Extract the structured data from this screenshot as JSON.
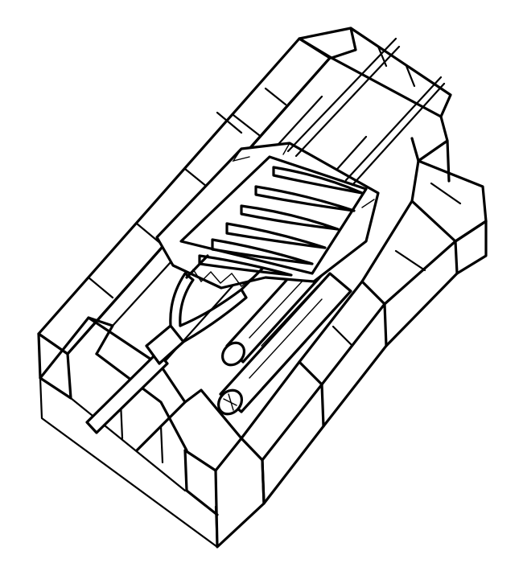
{
  "illustration": {
    "kind": "line-drawing",
    "subject": "grilled-ribs-on-brick-barbecue",
    "ink_color": "#000000",
    "paper_color": "#ffffff",
    "parts": [
      "brick-pit",
      "rib-rack",
      "spit-rods",
      "meat-fork",
      "logs"
    ]
  }
}
